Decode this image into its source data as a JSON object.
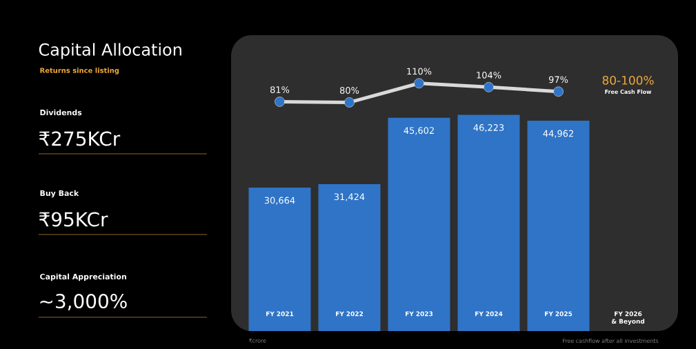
{
  "chart_data": [
    {
      "type": "bar",
      "categories": [
        "FY 2021",
        "FY 2022",
        "FY 2023",
        "FY 2024",
        "FY 2025",
        "FY 2026 & Beyond"
      ],
      "series": [
        {
          "color": "#2f74c6",
          "values": [
            30664,
            31424,
            45602,
            46223,
            44962,
            null
          ],
          "value_labels": [
            "30,664",
            "31,424",
            "45,602",
            "46,223",
            "44,962",
            null
          ]
        }
      ],
      "annotations": [
        "Dividends",
        "₹275KCr",
        "Buy Back",
        "₹95KCr",
        "Capital Appreciation",
        "~3,000%",
        "₹crore",
        "Free cashflow after all investments"
      ]
    },
    {
      "type": "line",
      "title": "Capital Allocation",
      "categories": [
        null,
        null,
        null,
        null,
        null,
        null
      ],
      "marker": "circle",
      "series": [
        {
          "color": "#d9d9d9",
          "values": [
            81,
            80,
            110,
            104,
            97,
            null
          ],
          "value_labels": [
            "81%",
            "80%",
            "110%",
            "104%",
            "97%",
            null
          ]
        }
      ],
      "annotations": [
        "80-100%",
        "Free Cash Flow",
        "Returns since listing"
      ]
    }
  ]
}
